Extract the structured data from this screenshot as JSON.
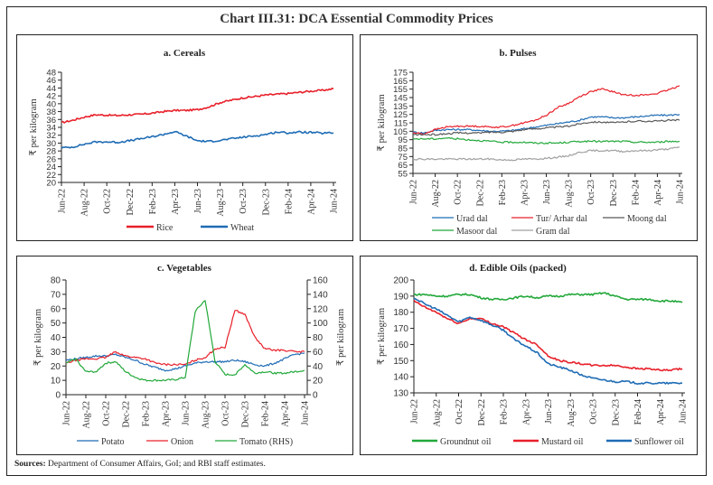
{
  "title": "Chart III.31: DCA Essential Commodity Prices",
  "sources_label": "Sources:",
  "sources_text": "Department of Consumer Affairs, GoI; and RBI staff estimates.",
  "chart_data": [
    {
      "id": "a",
      "type": "line",
      "title": "a. Cereals",
      "xlabel": "",
      "ylabel": "₹ per kilogram",
      "ylim": [
        20,
        48
      ],
      "yticks": [
        20,
        22,
        24,
        26,
        28,
        30,
        32,
        34,
        36,
        38,
        40,
        42,
        44,
        46,
        48
      ],
      "x_ticks": [
        "Jun-22",
        "Aug-22",
        "Oct-22",
        "Dec-22",
        "Feb-23",
        "Apr-23",
        "Jun-23",
        "Aug-23",
        "Oct-23",
        "Dec-23",
        "Feb-24",
        "Apr-24",
        "Jun-24"
      ],
      "legend": "bottom",
      "series": [
        {
          "name": "Rice",
          "color": "#e8202a",
          "values": [
            35.2,
            35.8,
            36.6,
            37.2,
            37.1,
            37.0,
            37.2,
            37.3,
            37.6,
            38.0,
            38.3,
            38.3,
            38.5,
            39.2,
            40.3,
            40.9,
            41.5,
            41.8,
            42.2,
            42.4,
            42.6,
            42.9,
            43.2,
            43.4,
            43.8
          ]
        },
        {
          "name": "Wheat",
          "color": "#1f6cb5",
          "values": [
            28.8,
            29.0,
            29.7,
            30.3,
            30.3,
            30.2,
            30.6,
            31.1,
            31.6,
            32.2,
            32.9,
            31.8,
            30.6,
            30.4,
            30.7,
            31.1,
            31.5,
            31.8,
            32.2,
            32.8,
            32.6,
            32.8,
            32.7,
            32.5,
            32.6
          ]
        }
      ]
    },
    {
      "id": "b",
      "type": "line",
      "title": "b. Pulses",
      "xlabel": "",
      "ylabel": "₹ per kilogram",
      "ylim": [
        55,
        175
      ],
      "yticks": [
        55,
        65,
        75,
        85,
        95,
        105,
        115,
        125,
        135,
        145,
        155,
        165,
        175
      ],
      "x_ticks": [
        "Jun-22",
        "Aug-22",
        "Oct-22",
        "Dec-22",
        "Feb-23",
        "Apr-23",
        "Jun-23",
        "Aug-23",
        "Oct-23",
        "Dec-23",
        "Feb-24",
        "Apr-24",
        "Jun-24"
      ],
      "legend": "bottom",
      "series": [
        {
          "name": "Urad dal",
          "color": "#1f6cb5",
          "values": [
            104,
            103,
            106,
            107,
            107,
            107,
            106,
            105,
            105,
            106,
            108,
            110,
            112,
            114,
            116,
            118,
            122,
            122,
            121,
            121,
            122,
            123,
            124,
            124,
            125
          ]
        },
        {
          "name": "Tur/ Arhar dal",
          "color": "#e8202a",
          "values": [
            103,
            102,
            107,
            110,
            111,
            111,
            111,
            110,
            110,
            112,
            115,
            118,
            124,
            133,
            138,
            146,
            152,
            155,
            152,
            148,
            148,
            148,
            150,
            154,
            159
          ]
        },
        {
          "name": "Moong dal",
          "color": "#595959",
          "values": [
            101,
            101,
            101,
            102,
            103,
            103,
            103,
            104,
            104,
            105,
            107,
            108,
            109,
            110,
            111,
            114,
            116,
            116,
            115,
            116,
            117,
            117,
            117,
            118,
            118
          ]
        },
        {
          "name": "Masoor dal",
          "color": "#22a83a",
          "values": [
            96,
            96,
            96,
            97,
            96,
            95,
            94,
            93,
            92,
            92,
            92,
            91,
            91,
            91,
            92,
            93,
            93,
            93,
            93,
            93,
            92,
            92,
            92,
            93,
            93
          ]
        },
        {
          "name": "Gram dal",
          "color": "#a0a0a0",
          "values": [
            72,
            72,
            72,
            72,
            72,
            72,
            72,
            72,
            71,
            71,
            72,
            72,
            73,
            74,
            76,
            80,
            82,
            82,
            82,
            81,
            82,
            82,
            83,
            84,
            86
          ]
        }
      ]
    },
    {
      "id": "c",
      "type": "line",
      "title": "c. Vegetables",
      "xlabel": "",
      "ylabel": "₹ per kilogram",
      "ylabel_right": "₹ per kilogram",
      "ylim": [
        0,
        80
      ],
      "yticks": [
        0,
        10,
        20,
        30,
        40,
        50,
        60,
        70,
        80
      ],
      "ylim_right": [
        0,
        160
      ],
      "yticks_right": [
        0,
        20,
        40,
        60,
        80,
        100,
        120,
        140,
        160
      ],
      "x_ticks": [
        "Jun-22",
        "Aug-22",
        "Oct-22",
        "Dec-22",
        "Feb-23",
        "Apr-23",
        "Jun-23",
        "Aug-23",
        "Oct-23",
        "Dec-23",
        "Feb-24",
        "Apr-24",
        "Jun-24"
      ],
      "legend": "bottom",
      "series": [
        {
          "name": "Potato",
          "color": "#1f6cb5",
          "axis": "left",
          "values": [
            24,
            25,
            26,
            27,
            27,
            28,
            26,
            24,
            21,
            19,
            17,
            18,
            20,
            22,
            23,
            23,
            23,
            24,
            23,
            21,
            20,
            22,
            25,
            28,
            29
          ]
        },
        {
          "name": "Onion",
          "color": "#e8202a",
          "axis": "left",
          "values": [
            22,
            24,
            25,
            25,
            26,
            30,
            27,
            26,
            25,
            22,
            21,
            21,
            21,
            24,
            26,
            32,
            33,
            59,
            56,
            40,
            32,
            31,
            31,
            30,
            30
          ]
        },
        {
          "name": "Tomato (RHS)",
          "color": "#22a83a",
          "axis": "right",
          "values": [
            44,
            50,
            32,
            32,
            44,
            46,
            32,
            24,
            20,
            20,
            20,
            21,
            24,
            116,
            132,
            46,
            28,
            28,
            42,
            30,
            32,
            30,
            30,
            32,
            34
          ]
        }
      ]
    },
    {
      "id": "d",
      "type": "line",
      "title": "d. Edible Oils (packed)",
      "xlabel": "",
      "ylabel": "₹ per kilogram",
      "ylim": [
        130,
        200
      ],
      "yticks": [
        130,
        140,
        150,
        160,
        170,
        180,
        190,
        200
      ],
      "x_ticks": [
        "Jun-22",
        "Aug-22",
        "Oct-22",
        "Dec-22",
        "Feb-23",
        "Apr-23",
        "Jun-23",
        "Aug-23",
        "Oct-23",
        "Dec-23",
        "Feb-24",
        "Apr-24",
        "Jun-24"
      ],
      "legend": "bottom",
      "series": [
        {
          "name": "Groundnut oil",
          "color": "#22a83a",
          "values": [
            191,
            191,
            190,
            190,
            191,
            191,
            189,
            188,
            188,
            189,
            190,
            189,
            190,
            190,
            191,
            191,
            191,
            192,
            190,
            188,
            188,
            188,
            187,
            187,
            186
          ]
        },
        {
          "name": "Mustard oil",
          "color": "#e8202a",
          "values": [
            187,
            183,
            180,
            176,
            173,
            176,
            176,
            173,
            171,
            167,
            163,
            160,
            153,
            150,
            149,
            148,
            147,
            147,
            147,
            146,
            145,
            145,
            144,
            144,
            145
          ]
        },
        {
          "name": "Sunflower oil",
          "color": "#1f6cb5",
          "values": [
            189,
            185,
            182,
            178,
            174,
            177,
            175,
            172,
            169,
            163,
            159,
            155,
            148,
            146,
            144,
            141,
            139,
            138,
            137,
            137,
            136,
            136,
            136,
            136,
            136
          ]
        }
      ]
    }
  ]
}
